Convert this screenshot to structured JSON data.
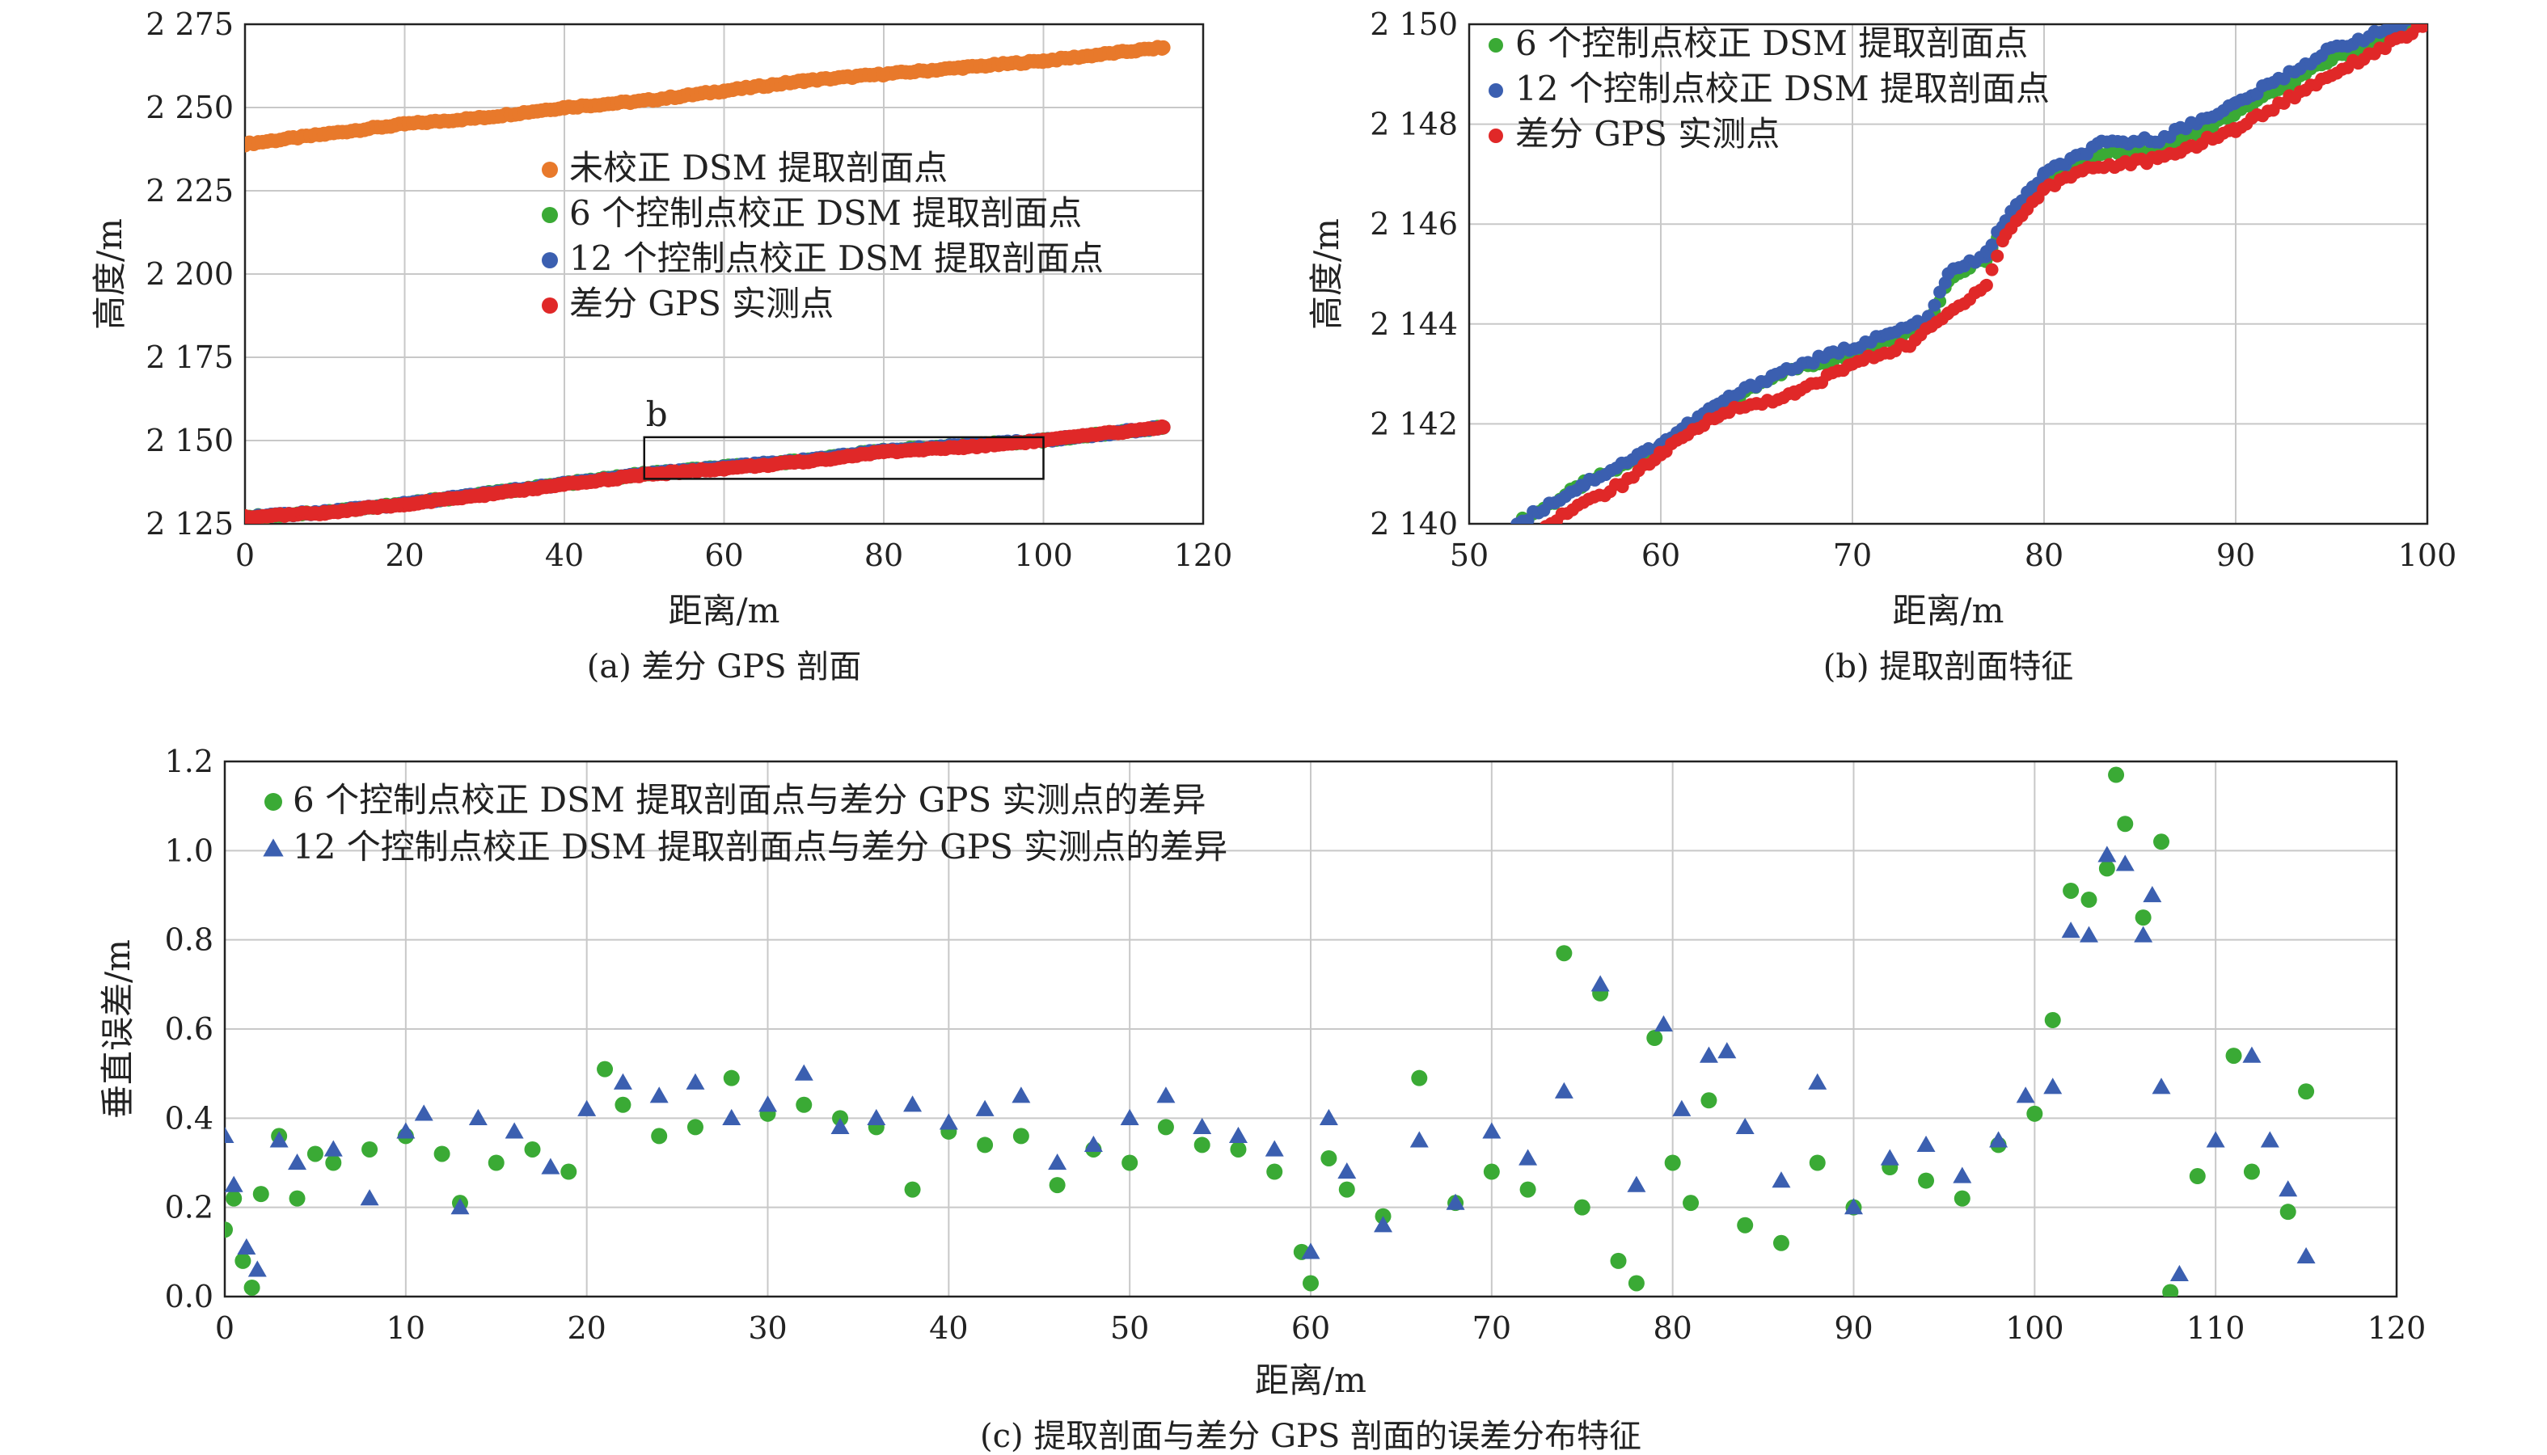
{
  "chart_data": [
    {
      "id": "a",
      "type": "scatter",
      "caption": "(a) 差分 GPS 剖面",
      "xlabel": "距离/m",
      "ylabel": "高度/m",
      "xlim": [
        0,
        120
      ],
      "ylim": [
        2125,
        2275
      ],
      "xticks": [
        "0",
        "20",
        "40",
        "60",
        "80",
        "100",
        "120"
      ],
      "yticks": [
        "2 125",
        "2 150",
        "2 175",
        "2 200",
        "2 225",
        "2 250",
        "2 275"
      ],
      "grid": true,
      "legend_position": "center",
      "box_label": "b",
      "box": {
        "x": [
          50,
          100
        ],
        "y": [
          2138.5,
          2151
        ]
      },
      "series": [
        {
          "name": "未校正 DSM 提取剖面点",
          "color": "#e8792b",
          "x": [
            0,
            10,
            20,
            30,
            40,
            50,
            60,
            70,
            80,
            90,
            100,
            115
          ],
          "y": [
            2239,
            2242,
            2245,
            2247,
            2250,
            2252,
            2255,
            2258,
            2260,
            2262,
            2264,
            2268
          ]
        },
        {
          "name": "6 个控制点校正 DSM 提取剖面点",
          "color": "#3aaa35",
          "x": [
            0,
            10,
            20,
            30,
            40,
            50,
            60,
            70,
            80,
            90,
            100,
            115
          ],
          "y": [
            2127,
            2128.5,
            2131,
            2134,
            2137,
            2140,
            2142,
            2144,
            2147,
            2148.5,
            2150,
            2154
          ]
        },
        {
          "name": "12 个控制点校正 DSM 提取剖面点",
          "color": "#3b5fb0",
          "x": [
            0,
            10,
            20,
            30,
            40,
            50,
            60,
            70,
            80,
            90,
            100,
            115
          ],
          "y": [
            2127,
            2128.5,
            2131,
            2134,
            2137,
            2140,
            2142,
            2144,
            2147,
            2148.5,
            2150,
            2154
          ]
        },
        {
          "name": "差分 GPS 实测点",
          "color": "#e02828",
          "x": [
            0,
            10,
            20,
            30,
            40,
            50,
            60,
            70,
            80,
            90,
            100,
            115
          ],
          "y": [
            2127,
            2128.3,
            2130.8,
            2133.7,
            2136.7,
            2139.7,
            2141.6,
            2143.6,
            2146.6,
            2148,
            2150,
            2154
          ]
        }
      ]
    },
    {
      "id": "b",
      "type": "scatter",
      "caption": "(b) 提取剖面特征",
      "xlabel": "距离/m",
      "ylabel": "高度/m",
      "xlim": [
        50,
        100
      ],
      "ylim": [
        2140,
        2150
      ],
      "xticks": [
        "50",
        "60",
        "70",
        "80",
        "90",
        "100"
      ],
      "yticks": [
        "2 140",
        "2 142",
        "2 144",
        "2 146",
        "2 148",
        "2 150"
      ],
      "grid": true,
      "legend_position": "top-left",
      "series": [
        {
          "name": "6 个控制点校正 DSM 提取剖面点",
          "color": "#3aaa35",
          "x": [
            52.5,
            56,
            60,
            63,
            66,
            69,
            72,
            74,
            75,
            77,
            78,
            80,
            83,
            86,
            90,
            95,
            99.5
          ],
          "y": [
            2140,
            2140.8,
            2141.5,
            2142.3,
            2143,
            2143.3,
            2143.7,
            2144,
            2144.9,
            2145.3,
            2146,
            2146.9,
            2147.4,
            2147.5,
            2148.2,
            2149.3,
            2150
          ]
        },
        {
          "name": "12 个控制点校正 DSM 提取剖面点",
          "color": "#3b5fb0",
          "x": [
            52.5,
            56,
            60,
            63,
            66,
            69,
            72,
            74,
            75,
            77,
            78,
            80,
            83,
            86,
            90,
            95,
            99.5
          ],
          "y": [
            2140,
            2140.8,
            2141.6,
            2142.4,
            2143,
            2143.4,
            2143.8,
            2144.1,
            2145,
            2145.4,
            2146.1,
            2147,
            2147.6,
            2147.7,
            2148.4,
            2149.5,
            2150.1
          ]
        },
        {
          "name": "差分 GPS 实测点",
          "color": "#e02828",
          "x": [
            54,
            58,
            60,
            63,
            65,
            67,
            70,
            73,
            75,
            77,
            78,
            80,
            82,
            86,
            90,
            95,
            100
          ],
          "y": [
            2140,
            2140.8,
            2141.4,
            2142.2,
            2142.4,
            2142.6,
            2143.2,
            2143.6,
            2144.2,
            2144.8,
            2145.8,
            2146.7,
            2147.1,
            2147.3,
            2147.9,
            2149,
            2150
          ]
        }
      ]
    },
    {
      "id": "c",
      "type": "scatter",
      "caption": "(c) 提取剖面与差分 GPS 剖面的误差分布特征",
      "xlabel": "距离/m",
      "ylabel": "垂直误差/m",
      "xlim": [
        0,
        120
      ],
      "ylim": [
        0,
        1.2
      ],
      "xticks": [
        "0",
        "10",
        "20",
        "30",
        "40",
        "50",
        "60",
        "70",
        "80",
        "90",
        "100",
        "110",
        "120"
      ],
      "yticks": [
        "0.0",
        "0.2",
        "0.4",
        "0.6",
        "0.8",
        "1.0",
        "1.2"
      ],
      "grid": true,
      "legend_position": "top-left",
      "series": [
        {
          "name": "6 个控制点校正 DSM 提取剖面点与差分 GPS 实测点的差异",
          "marker": "circle",
          "color": "#3aaa35",
          "x": [
            0,
            0.5,
            1,
            1.5,
            2,
            3,
            4,
            5,
            6,
            8,
            10,
            12,
            13,
            15,
            17,
            19,
            21,
            22,
            24,
            26,
            28,
            30,
            32,
            34,
            36,
            38,
            40,
            42,
            44,
            46,
            48,
            50,
            52,
            54,
            56,
            58,
            59.5,
            60,
            61,
            62,
            64,
            66,
            68,
            70,
            72,
            74,
            75,
            76,
            77,
            78,
            79,
            80,
            81,
            82,
            84,
            86,
            88,
            90,
            92,
            94,
            96,
            98,
            100,
            101,
            102,
            103,
            104,
            104.5,
            105,
            106,
            107,
            107.5,
            109,
            111,
            112,
            114,
            115
          ],
          "y": [
            0.15,
            0.22,
            0.08,
            0.02,
            0.23,
            0.36,
            0.22,
            0.32,
            0.3,
            0.33,
            0.36,
            0.32,
            0.21,
            0.3,
            0.33,
            0.28,
            0.51,
            0.43,
            0.36,
            0.38,
            0.49,
            0.41,
            0.43,
            0.4,
            0.38,
            0.24,
            0.37,
            0.34,
            0.36,
            0.25,
            0.33,
            0.3,
            0.38,
            0.34,
            0.33,
            0.28,
            0.1,
            0.03,
            0.31,
            0.24,
            0.18,
            0.49,
            0.21,
            0.28,
            0.24,
            0.77,
            0.2,
            0.68,
            0.08,
            0.03,
            0.58,
            0.3,
            0.21,
            0.44,
            0.16,
            0.12,
            0.3,
            0.2,
            0.29,
            0.26,
            0.22,
            0.34,
            0.41,
            0.62,
            0.91,
            0.89,
            0.96,
            1.17,
            1.06,
            0.85,
            1.02,
            0.01,
            0.27,
            0.54,
            0.28,
            0.19,
            0.46
          ]
        },
        {
          "name": "12 个控制点校正 DSM 提取剖面点与差分 GPS 实测点的差异",
          "marker": "triangle",
          "color": "#3b5fb0",
          "x": [
            0,
            0.5,
            1.2,
            1.8,
            3,
            4,
            6,
            8,
            10,
            11,
            13,
            14,
            16,
            18,
            20,
            22,
            24,
            26,
            28,
            30,
            32,
            34,
            36,
            38,
            40,
            42,
            44,
            46,
            48,
            50,
            52,
            54,
            56,
            58,
            60,
            61,
            62,
            64,
            66,
            68,
            70,
            72,
            74,
            76,
            78,
            79.5,
            80.5,
            82,
            83,
            84,
            86,
            88,
            90,
            92,
            94,
            96,
            98,
            99.5,
            101,
            102,
            103,
            104,
            105,
            106,
            106.5,
            107,
            108,
            110,
            112,
            113,
            114,
            115
          ],
          "y": [
            0.36,
            0.25,
            0.11,
            0.06,
            0.35,
            0.3,
            0.33,
            0.22,
            0.37,
            0.41,
            0.2,
            0.4,
            0.37,
            0.29,
            0.42,
            0.48,
            0.45,
            0.48,
            0.4,
            0.43,
            0.5,
            0.38,
            0.4,
            0.43,
            0.39,
            0.42,
            0.45,
            0.3,
            0.34,
            0.4,
            0.45,
            0.38,
            0.36,
            0.33,
            0.1,
            0.4,
            0.28,
            0.16,
            0.35,
            0.21,
            0.37,
            0.31,
            0.46,
            0.7,
            0.25,
            0.61,
            0.42,
            0.54,
            0.55,
            0.38,
            0.26,
            0.48,
            0.2,
            0.31,
            0.34,
            0.27,
            0.35,
            0.45,
            0.47,
            0.82,
            0.81,
            0.99,
            0.97,
            0.81,
            0.9,
            0.47,
            0.05,
            0.35,
            0.54,
            0.35,
            0.24,
            0.09
          ]
        }
      ]
    }
  ]
}
